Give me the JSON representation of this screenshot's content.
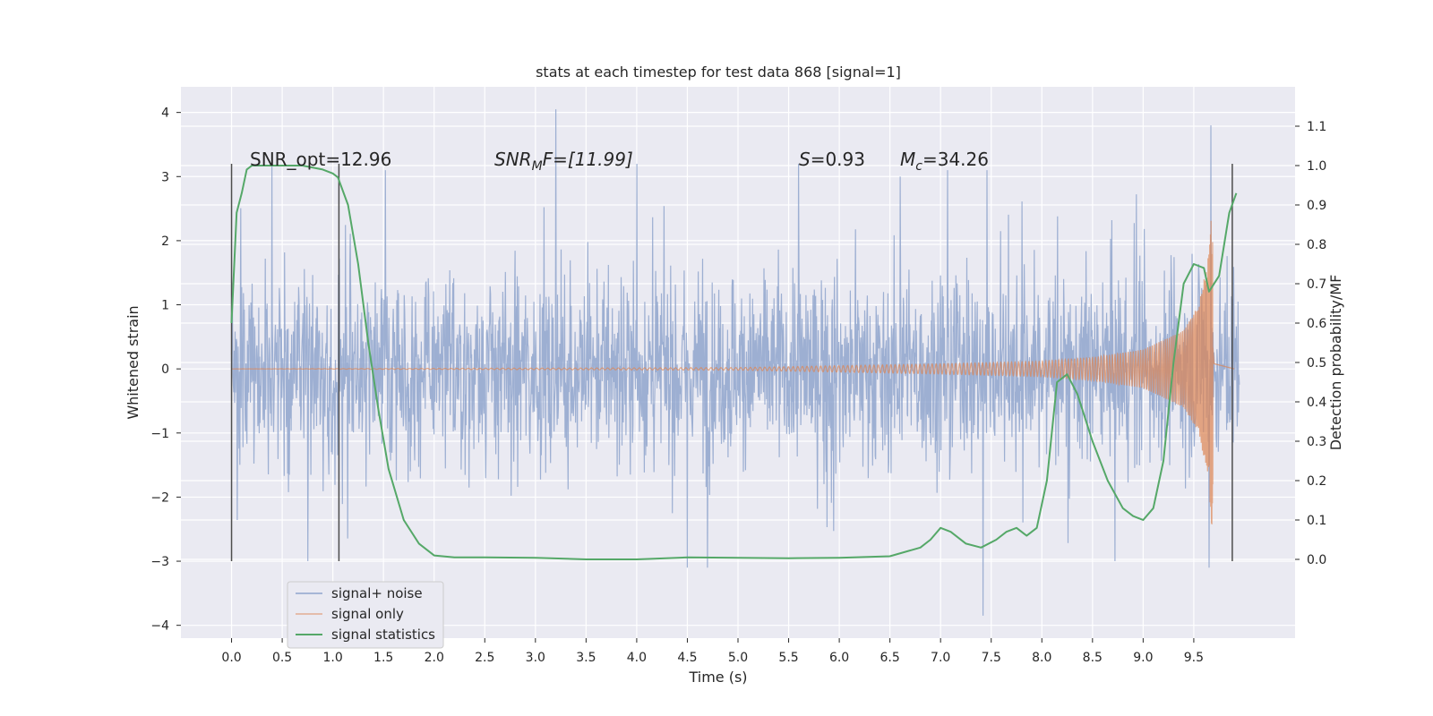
{
  "chart_data": {
    "type": "line",
    "title": "stats at each timestep for test data 868 [signal=1]",
    "xlabel": "Time (s)",
    "ylabel": "Whitened strain",
    "ylabel_right": "Detection probability/MF",
    "xlim": [
      -0.5,
      10.5
    ],
    "ylim": [
      -4.2,
      4.4
    ],
    "ylim_right": [
      -0.2,
      1.2
    ],
    "x_ticks": [
      "0.0",
      "0.5",
      "1.0",
      "1.5",
      "2.0",
      "2.5",
      "3.0",
      "3.5",
      "4.0",
      "4.5",
      "5.0",
      "5.5",
      "6.0",
      "6.5",
      "7.0",
      "7.5",
      "8.0",
      "8.5",
      "9.0",
      "9.5"
    ],
    "y_ticks": [
      "−4",
      "−3",
      "−2",
      "−1",
      "0",
      "1",
      "2",
      "3",
      "4"
    ],
    "y_ticks_right": [
      "0.0",
      "0.1",
      "0.2",
      "0.3",
      "0.4",
      "0.5",
      "0.6",
      "0.7",
      "0.8",
      "0.9",
      "1.0",
      "1.1"
    ],
    "grid": true,
    "legend_position": "bottom-left",
    "background": "#eaeaf2",
    "colors": {
      "noise": "#8fa4cc",
      "signal": "#dd8452",
      "stats": "#55a868",
      "vline": "#4d4d4d",
      "grid": "#ffffff"
    },
    "annotations": {
      "snr_opt": "SNR_opt=12.96",
      "snr_mf_prefix": "SNR",
      "snr_mf_sub": "M",
      "snr_mf_suffix": "F=[11.99]",
      "s_label": "S",
      "s_value": "=0.93",
      "mc_label": "M",
      "mc_sub": "c",
      "mc_value": "=34.26"
    },
    "vertical_markers": [
      0.0,
      1.06,
      9.88
    ],
    "vertical_marker_range": [
      -3.0,
      3.2
    ],
    "series": [
      {
        "name": "signal+ noise",
        "axis": "left",
        "noise_envelope_typical": 1.3,
        "range": [
          -3.85,
          4.05
        ],
        "peaks": [
          [
            0.4,
            3.2
          ],
          [
            3.2,
            4.05
          ],
          [
            4.0,
            3.2
          ],
          [
            5.6,
            3.2
          ],
          [
            6.6,
            3.0
          ],
          [
            9.67,
            3.8
          ],
          [
            7.42,
            -3.85
          ],
          [
            4.5,
            -3.1
          ],
          [
            4.7,
            -3.1
          ],
          [
            9.65,
            -3.1
          ]
        ]
      },
      {
        "name": "signal only",
        "axis": "left",
        "amplitude_envelope": [
          [
            0.0,
            0.0
          ],
          [
            5.0,
            0.02
          ],
          [
            6.0,
            0.05
          ],
          [
            7.0,
            0.08
          ],
          [
            8.0,
            0.12
          ],
          [
            8.5,
            0.18
          ],
          [
            9.0,
            0.3
          ],
          [
            9.4,
            0.6
          ],
          [
            9.55,
            1.0
          ],
          [
            9.65,
            1.8
          ],
          [
            9.68,
            2.6
          ],
          [
            9.7,
            0.4
          ],
          [
            9.9,
            0.0
          ]
        ]
      },
      {
        "name": "signal statistics",
        "axis": "right",
        "x": [
          0.0,
          0.05,
          0.1,
          0.15,
          0.2,
          0.3,
          0.5,
          0.7,
          0.9,
          1.0,
          1.05,
          1.15,
          1.25,
          1.35,
          1.45,
          1.55,
          1.7,
          1.85,
          2.0,
          2.2,
          2.5,
          3.0,
          3.5,
          4.0,
          4.5,
          5.0,
          5.5,
          6.0,
          6.5,
          6.8,
          6.9,
          7.0,
          7.1,
          7.25,
          7.4,
          7.55,
          7.65,
          7.75,
          7.85,
          7.95,
          8.05,
          8.15,
          8.25,
          8.35,
          8.5,
          8.65,
          8.8,
          8.9,
          9.0,
          9.1,
          9.2,
          9.3,
          9.4,
          9.5,
          9.6,
          9.65,
          9.75,
          9.85,
          9.92
        ],
        "values": [
          0.6,
          0.88,
          0.93,
          0.99,
          1.0,
          1.0,
          1.0,
          1.0,
          0.99,
          0.98,
          0.97,
          0.9,
          0.75,
          0.55,
          0.38,
          0.23,
          0.1,
          0.04,
          0.01,
          0.005,
          0.005,
          0.004,
          0.0,
          0.0,
          0.005,
          0.004,
          0.003,
          0.004,
          0.008,
          0.03,
          0.05,
          0.08,
          0.07,
          0.04,
          0.03,
          0.05,
          0.07,
          0.08,
          0.06,
          0.08,
          0.2,
          0.45,
          0.47,
          0.42,
          0.3,
          0.2,
          0.13,
          0.11,
          0.1,
          0.13,
          0.25,
          0.5,
          0.7,
          0.75,
          0.74,
          0.68,
          0.72,
          0.88,
          0.93
        ]
      }
    ]
  }
}
